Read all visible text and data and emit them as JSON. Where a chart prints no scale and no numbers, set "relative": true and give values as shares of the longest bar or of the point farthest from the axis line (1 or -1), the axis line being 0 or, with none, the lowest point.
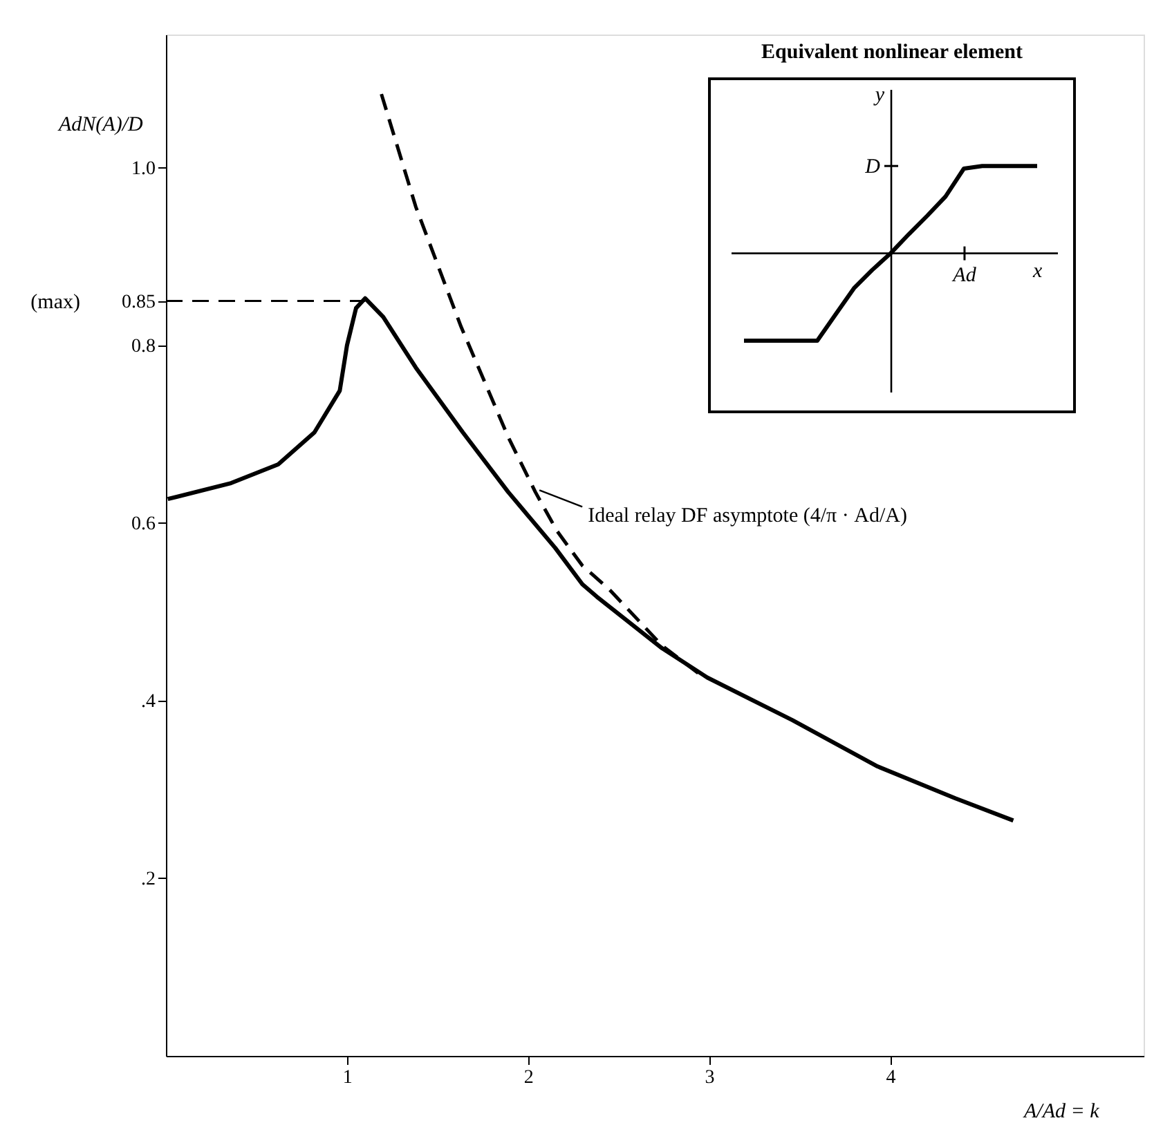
{
  "chart_data": [
    {
      "type": "line",
      "xlabel": "A/Ad = k",
      "ylabel": "AdN(A)/D",
      "xlim": [
        0,
        5.4
      ],
      "ylim": [
        0,
        1.15
      ],
      "xticks": [
        1,
        2,
        3,
        4
      ],
      "yticks": [
        {
          "value": 0.2,
          "label": ".2"
        },
        {
          "value": 0.4,
          "label": ".4"
        },
        {
          "value": 0.6,
          "label": "0.6"
        },
        {
          "value": 0.8,
          "label": "0.8"
        },
        {
          "value": 0.85,
          "label": "0.85"
        },
        {
          "value": 1.0,
          "label": "1.0"
        }
      ],
      "grid": false,
      "series": [
        {
          "color": "#000000",
          "line_style": "solid",
          "x": [
            0.01,
            0.36,
            0.62,
            0.82,
            0.96,
            1.0,
            1.05,
            1.1,
            1.2,
            1.38,
            1.64,
            1.89,
            2.15,
            2.3,
            2.38,
            2.74,
            2.99,
            3.46,
            3.93,
            4.36,
            4.68
          ],
          "values": [
            0.627,
            0.645,
            0.666,
            0.702,
            0.749,
            0.8,
            0.842,
            0.853,
            0.832,
            0.775,
            0.702,
            0.635,
            0.572,
            0.531,
            0.517,
            0.459,
            0.426,
            0.378,
            0.326,
            0.29,
            0.265
          ]
        },
        {
          "color": "#000000",
          "line_style": "dashed",
          "x": [
            1.19,
            1.38,
            1.63,
            1.89,
            2.04,
            2.16,
            2.3,
            2.45,
            2.74,
            2.94
          ],
          "values": [
            1.083,
            0.956,
            0.821,
            0.697,
            0.635,
            0.591,
            0.552,
            0.525,
            0.462,
            0.431
          ]
        }
      ],
      "ref_lines": [
        {
          "axis": "y",
          "value": 0.85,
          "label": "(max)",
          "line_style": "dashed",
          "color": "#000000"
        }
      ],
      "annotations": [
        {
          "text": "Ideal relay DF asymptote (4/π · Ad/A)",
          "x": 2.04,
          "y": 0.64
        }
      ]
    },
    {
      "type": "line",
      "relative": true,
      "title": "Equivalent nonlinear element",
      "xlabel": "x",
      "ylabel": "y",
      "categories": [
        null,
        null,
        null,
        null,
        null,
        null,
        null,
        null,
        null,
        null,
        null,
        null,
        null,
        null,
        null,
        null,
        null
      ],
      "annotations": [
        "Ad",
        "D"
      ],
      "series": [
        {
          "color": "#000000",
          "line_style": "solid",
          "values": [
            -1,
            -1,
            -1,
            -1,
            -1,
            -0.7,
            -0.4,
            -0.19,
            0,
            0.22,
            0.43,
            0.65,
            0.97,
            1,
            1,
            1,
            1
          ]
        }
      ]
    }
  ]
}
